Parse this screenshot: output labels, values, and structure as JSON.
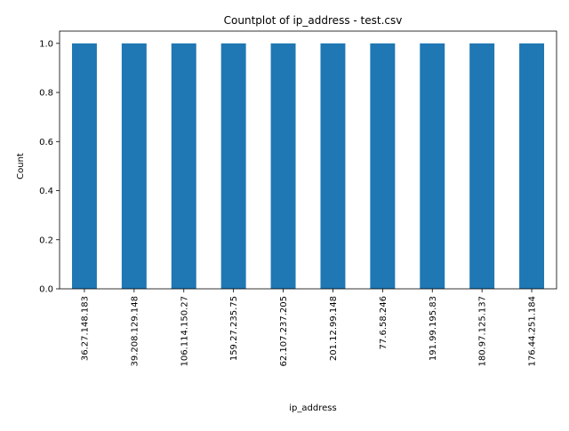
{
  "chart_data": {
    "type": "bar",
    "title": "Countplot of ip_address - test.csv",
    "xlabel": "ip_address",
    "ylabel": "Count",
    "categories": [
      "36.27.148.183",
      "39.208.129.148",
      "106.114.150.27",
      "159.27.235.75",
      "62.107.237.205",
      "201.12.99.148",
      "77.6.58.246",
      "191.99.195.83",
      "180.97.125.137",
      "176.44.251.184"
    ],
    "values": [
      1,
      1,
      1,
      1,
      1,
      1,
      1,
      1,
      1,
      1
    ],
    "ylim": [
      0,
      1.05
    ],
    "yticks": [
      "0.0",
      "0.2",
      "0.4",
      "0.6",
      "0.8",
      "1.0"
    ],
    "grid": false,
    "bar_color": "#1f77b4"
  }
}
